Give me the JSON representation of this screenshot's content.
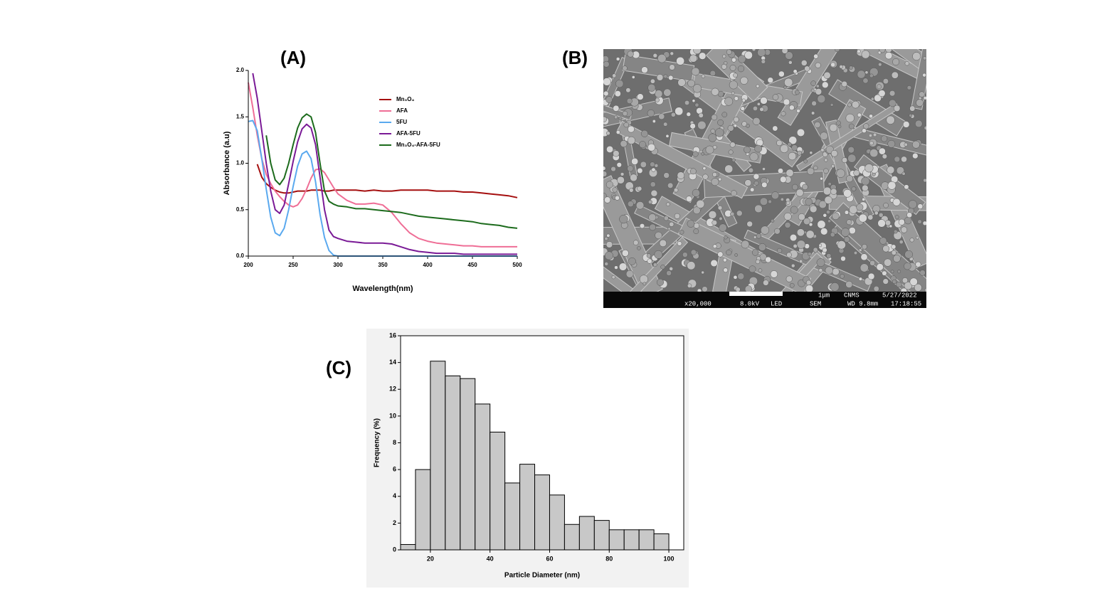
{
  "panel_labels": [
    "(A)",
    "(B)",
    "(C)"
  ],
  "sem_info": {
    "scale": "1μm",
    "lab": "CNMS",
    "date": "5/27/2022",
    "mag": "x20,000",
    "kv": "8.0kV",
    "det": "LED",
    "mode": "SEM",
    "wd": "WD 9.8mm",
    "time": "17:18:55"
  },
  "chart_data": [
    {
      "type": "line",
      "xlabel": "Wavelength(nm)",
      "ylabel": "Absorbance (a.u)",
      "xlim": [
        200,
        500
      ],
      "ylim": [
        0,
        2
      ],
      "xticks": [
        200,
        250,
        300,
        350,
        400,
        450,
        500
      ],
      "yticks": [
        {
          "value": 0,
          "label": "0.0"
        },
        0.5,
        {
          "value": 1,
          "label": "1.0"
        },
        1.5,
        {
          "value": 2,
          "label": "2.0"
        }
      ],
      "x": [
        200,
        205,
        210,
        215,
        220,
        225,
        230,
        235,
        240,
        245,
        250,
        255,
        260,
        265,
        270,
        275,
        280,
        285,
        290,
        295,
        300,
        310,
        320,
        330,
        340,
        350,
        360,
        370,
        380,
        390,
        400,
        410,
        420,
        430,
        440,
        450,
        460,
        470,
        480,
        490,
        500
      ],
      "series": [
        {
          "name": "Mn₃O₄",
          "color": "#a50f0f",
          "values": [
            null,
            null,
            0.99,
            0.85,
            0.78,
            0.74,
            0.71,
            0.69,
            0.68,
            0.68,
            0.69,
            0.7,
            0.7,
            0.7,
            0.71,
            0.71,
            0.71,
            0.7,
            0.7,
            0.71,
            0.71,
            0.71,
            0.71,
            0.7,
            0.71,
            0.7,
            0.7,
            0.71,
            0.71,
            0.71,
            0.71,
            0.7,
            0.7,
            0.7,
            0.69,
            0.69,
            0.68,
            0.67,
            0.66,
            0.65,
            0.63
          ]
        },
        {
          "name": "AFA",
          "color": "#ef6e96",
          "values": [
            1.87,
            1.6,
            1.3,
            1.05,
            0.88,
            0.78,
            0.7,
            0.64,
            0.59,
            0.55,
            0.53,
            0.55,
            0.62,
            0.72,
            0.84,
            0.93,
            0.94,
            0.9,
            0.82,
            0.74,
            0.67,
            0.6,
            0.56,
            0.56,
            0.57,
            0.55,
            0.47,
            0.35,
            0.25,
            0.19,
            0.16,
            0.14,
            0.13,
            0.12,
            0.11,
            0.11,
            0.1,
            0.1,
            0.1,
            0.1,
            0.1
          ]
        },
        {
          "name": "5FU",
          "color": "#5aa9ef",
          "values": [
            1.45,
            1.46,
            1.35,
            1.05,
            0.72,
            0.42,
            0.25,
            0.22,
            0.3,
            0.5,
            0.75,
            0.97,
            1.1,
            1.13,
            1.05,
            0.8,
            0.45,
            0.2,
            0.06,
            0.01,
            0,
            0,
            0,
            0,
            0,
            0,
            0,
            0,
            0,
            0,
            0,
            0,
            0,
            0,
            0,
            0,
            0,
            0,
            0,
            0,
            0
          ]
        },
        {
          "name": "AFA-5FU",
          "color": "#7a1a96",
          "values": [
            null,
            1.97,
            1.7,
            1.35,
            1.0,
            0.7,
            0.5,
            0.46,
            0.55,
            0.78,
            1.02,
            1.23,
            1.37,
            1.42,
            1.38,
            1.2,
            0.85,
            0.5,
            0.28,
            0.21,
            0.19,
            0.16,
            0.15,
            0.14,
            0.14,
            0.14,
            0.13,
            0.1,
            0.07,
            0.05,
            0.04,
            0.03,
            0.03,
            0.03,
            0.02,
            0.02,
            0.02,
            0.02,
            0.02,
            0.02,
            0.02
          ]
        },
        {
          "name": "Mn₃O₄-AFA-5FU",
          "color": "#1c6b1c",
          "values": [
            null,
            null,
            null,
            null,
            1.3,
            1.0,
            0.82,
            0.77,
            0.84,
            1.0,
            1.2,
            1.38,
            1.49,
            1.53,
            1.5,
            1.33,
            1.0,
            0.7,
            0.59,
            0.56,
            0.54,
            0.53,
            0.51,
            0.51,
            0.5,
            0.49,
            0.48,
            0.47,
            0.45,
            0.43,
            0.42,
            0.41,
            0.4,
            0.39,
            0.38,
            0.37,
            0.35,
            0.34,
            0.33,
            0.31,
            0.3
          ]
        }
      ]
    },
    {
      "type": "histogram",
      "xlabel": "Particle Diameter (nm)",
      "ylabel": "Frequency (%)",
      "xlim": [
        10,
        105
      ],
      "ylim": [
        0,
        16
      ],
      "xticks": [
        20,
        40,
        60,
        80,
        100
      ],
      "yticks": [
        0,
        2,
        4,
        6,
        8,
        10,
        12,
        14,
        16
      ],
      "color": "#c8c8c8",
      "bins": [
        10,
        15,
        20,
        25,
        30,
        35,
        40,
        45,
        50,
        55,
        60,
        65,
        70,
        75,
        80,
        85,
        90,
        95,
        100
      ],
      "values": [
        0.4,
        6.0,
        14.1,
        13.0,
        12.8,
        10.9,
        8.8,
        5.0,
        6.4,
        5.6,
        4.1,
        1.9,
        2.5,
        2.2,
        1.5,
        1.5,
        1.5,
        1.2
      ]
    }
  ]
}
